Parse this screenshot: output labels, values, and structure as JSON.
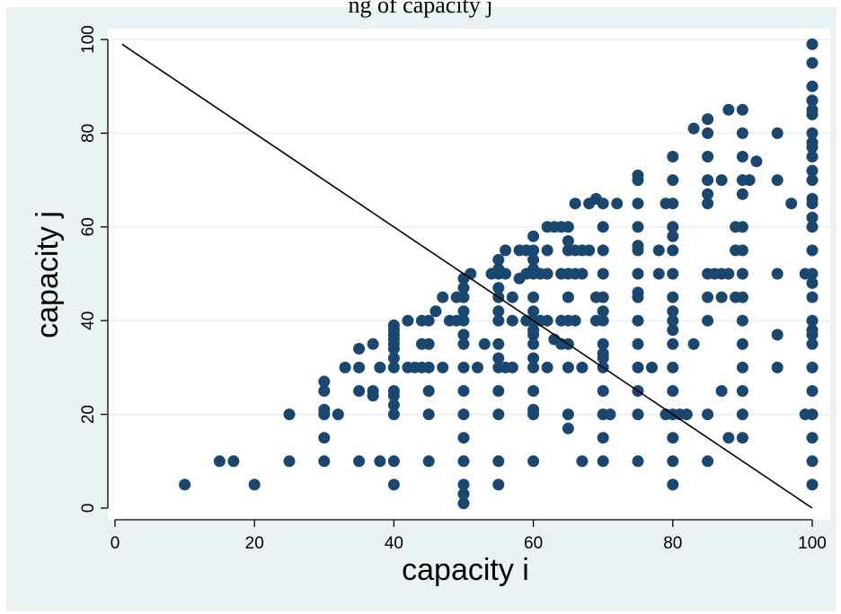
{
  "chart_data": {
    "type": "scatter",
    "title": "ng of capacity j",
    "xlabel": "capacity i",
    "ylabel": "capacity j",
    "xlim": [
      0,
      100
    ],
    "ylim": [
      0,
      100
    ],
    "xticks": [
      0,
      20,
      40,
      60,
      80,
      100
    ],
    "yticks": [
      0,
      20,
      40,
      60,
      80,
      100
    ],
    "grid": "horizontal",
    "legend": "none",
    "colors": {
      "outer_background": "#eaf2f3",
      "plot_background": "#ffffff",
      "gridline": "#eaf2f3",
      "marker": "#1a476f",
      "reference_line": "#000000"
    },
    "reference_line": {
      "x": [
        1,
        100
      ],
      "y": [
        99,
        0
      ]
    },
    "points": [
      [
        10,
        5
      ],
      [
        15,
        10
      ],
      [
        17,
        10
      ],
      [
        20,
        5
      ],
      [
        25,
        10
      ],
      [
        25,
        20
      ],
      [
        30,
        10
      ],
      [
        30,
        15
      ],
      [
        30,
        20
      ],
      [
        30,
        21
      ],
      [
        30,
        25
      ],
      [
        30,
        27
      ],
      [
        32,
        20
      ],
      [
        33,
        30
      ],
      [
        35,
        10
      ],
      [
        35,
        25
      ],
      [
        35,
        30
      ],
      [
        35,
        34
      ],
      [
        37,
        24
      ],
      [
        37,
        25
      ],
      [
        37,
        35
      ],
      [
        38,
        10
      ],
      [
        38,
        30
      ],
      [
        40,
        5
      ],
      [
        40,
        10
      ],
      [
        40,
        20
      ],
      [
        40,
        22
      ],
      [
        40,
        24
      ],
      [
        40,
        25
      ],
      [
        40,
        30
      ],
      [
        40,
        32
      ],
      [
        40,
        34
      ],
      [
        40,
        35
      ],
      [
        40,
        36
      ],
      [
        40,
        37
      ],
      [
        40,
        38
      ],
      [
        40,
        39
      ],
      [
        42,
        30
      ],
      [
        42,
        40
      ],
      [
        43,
        30
      ],
      [
        44,
        30
      ],
      [
        44,
        35
      ],
      [
        44,
        40
      ],
      [
        45,
        10
      ],
      [
        45,
        20
      ],
      [
        45,
        25
      ],
      [
        45,
        30
      ],
      [
        45,
        35
      ],
      [
        45,
        40
      ],
      [
        46,
        42
      ],
      [
        47,
        30
      ],
      [
        47,
        45
      ],
      [
        48,
        40
      ],
      [
        49,
        40
      ],
      [
        49,
        45
      ],
      [
        50,
        1
      ],
      [
        50,
        3
      ],
      [
        50,
        5
      ],
      [
        50,
        10
      ],
      [
        50,
        15
      ],
      [
        50,
        20
      ],
      [
        50,
        25
      ],
      [
        50,
        30
      ],
      [
        50,
        35
      ],
      [
        50,
        37
      ],
      [
        50,
        40
      ],
      [
        50,
        42
      ],
      [
        50,
        45
      ],
      [
        50,
        47
      ],
      [
        50,
        49
      ],
      [
        51,
        50
      ],
      [
        52,
        30
      ],
      [
        53,
        35
      ],
      [
        54,
        50
      ],
      [
        55,
        5
      ],
      [
        55,
        10
      ],
      [
        55,
        20
      ],
      [
        55,
        25
      ],
      [
        55,
        30
      ],
      [
        55,
        32
      ],
      [
        55,
        35
      ],
      [
        55,
        40
      ],
      [
        55,
        42
      ],
      [
        55,
        45
      ],
      [
        55,
        47
      ],
      [
        55,
        50
      ],
      [
        55,
        51
      ],
      [
        55,
        53
      ],
      [
        56,
        30
      ],
      [
        56,
        50
      ],
      [
        56,
        55
      ],
      [
        57,
        30
      ],
      [
        57,
        40
      ],
      [
        57,
        45
      ],
      [
        58,
        49
      ],
      [
        58,
        55
      ],
      [
        59,
        40
      ],
      [
        59,
        50
      ],
      [
        59,
        55
      ],
      [
        60,
        10
      ],
      [
        60,
        20
      ],
      [
        60,
        21
      ],
      [
        60,
        25
      ],
      [
        60,
        30
      ],
      [
        60,
        32
      ],
      [
        60,
        35
      ],
      [
        60,
        37
      ],
      [
        60,
        38
      ],
      [
        60,
        40
      ],
      [
        60,
        42
      ],
      [
        60,
        45
      ],
      [
        60,
        50
      ],
      [
        60,
        51
      ],
      [
        60,
        53
      ],
      [
        60,
        55
      ],
      [
        60,
        58
      ],
      [
        61,
        40
      ],
      [
        61,
        50
      ],
      [
        62,
        30
      ],
      [
        62,
        40
      ],
      [
        62,
        50
      ],
      [
        62,
        55
      ],
      [
        62,
        60
      ],
      [
        63,
        36
      ],
      [
        63,
        60
      ],
      [
        64,
        35
      ],
      [
        64,
        40
      ],
      [
        64,
        50
      ],
      [
        64,
        60
      ],
      [
        65,
        17
      ],
      [
        65,
        20
      ],
      [
        65,
        30
      ],
      [
        65,
        35
      ],
      [
        65,
        40
      ],
      [
        65,
        45
      ],
      [
        65,
        50
      ],
      [
        65,
        55
      ],
      [
        65,
        57
      ],
      [
        65,
        60
      ],
      [
        66,
        40
      ],
      [
        66,
        50
      ],
      [
        66,
        55
      ],
      [
        66,
        65
      ],
      [
        67,
        10
      ],
      [
        67,
        30
      ],
      [
        67,
        50
      ],
      [
        67,
        55
      ],
      [
        68,
        55
      ],
      [
        68,
        65
      ],
      [
        69,
        40
      ],
      [
        69,
        45
      ],
      [
        69,
        66
      ],
      [
        70,
        10
      ],
      [
        70,
        15
      ],
      [
        70,
        20
      ],
      [
        70,
        25
      ],
      [
        70,
        30
      ],
      [
        70,
        32
      ],
      [
        70,
        33
      ],
      [
        70,
        35
      ],
      [
        70,
        40
      ],
      [
        70,
        42
      ],
      [
        70,
        45
      ],
      [
        70,
        50
      ],
      [
        70,
        55
      ],
      [
        70,
        60
      ],
      [
        70,
        65
      ],
      [
        71,
        20
      ],
      [
        72,
        65
      ],
      [
        75,
        10
      ],
      [
        75,
        20
      ],
      [
        75,
        25
      ],
      [
        75,
        30
      ],
      [
        75,
        35
      ],
      [
        75,
        40
      ],
      [
        75,
        45
      ],
      [
        75,
        46
      ],
      [
        75,
        50
      ],
      [
        75,
        55
      ],
      [
        75,
        56
      ],
      [
        75,
        60
      ],
      [
        75,
        65
      ],
      [
        75,
        70
      ],
      [
        75,
        71
      ],
      [
        77,
        30
      ],
      [
        78,
        50
      ],
      [
        78,
        55
      ],
      [
        79,
        20
      ],
      [
        79,
        65
      ],
      [
        80,
        5
      ],
      [
        80,
        10
      ],
      [
        80,
        15
      ],
      [
        80,
        20
      ],
      [
        80,
        25
      ],
      [
        80,
        30
      ],
      [
        80,
        35
      ],
      [
        80,
        38
      ],
      [
        80,
        40
      ],
      [
        80,
        42
      ],
      [
        80,
        45
      ],
      [
        80,
        50
      ],
      [
        80,
        55
      ],
      [
        80,
        58
      ],
      [
        80,
        60
      ],
      [
        80,
        65
      ],
      [
        80,
        70
      ],
      [
        80,
        75
      ],
      [
        81,
        20
      ],
      [
        82,
        20
      ],
      [
        83,
        35
      ],
      [
        83,
        81
      ],
      [
        85,
        10
      ],
      [
        85,
        20
      ],
      [
        85,
        40
      ],
      [
        85,
        45
      ],
      [
        85,
        50
      ],
      [
        85,
        65
      ],
      [
        85,
        67
      ],
      [
        85,
        70
      ],
      [
        85,
        75
      ],
      [
        85,
        80
      ],
      [
        85,
        83
      ],
      [
        86,
        50
      ],
      [
        87,
        25
      ],
      [
        87,
        45
      ],
      [
        87,
        50
      ],
      [
        87,
        70
      ],
      [
        88,
        15
      ],
      [
        88,
        50
      ],
      [
        88,
        85
      ],
      [
        89,
        45
      ],
      [
        89,
        55
      ],
      [
        89,
        60
      ],
      [
        90,
        15
      ],
      [
        90,
        20
      ],
      [
        90,
        25
      ],
      [
        90,
        30
      ],
      [
        90,
        35
      ],
      [
        90,
        40
      ],
      [
        90,
        45
      ],
      [
        90,
        50
      ],
      [
        90,
        55
      ],
      [
        90,
        60
      ],
      [
        90,
        67
      ],
      [
        90,
        70
      ],
      [
        90,
        75
      ],
      [
        90,
        80
      ],
      [
        90,
        85
      ],
      [
        91,
        70
      ],
      [
        92,
        74
      ],
      [
        95,
        30
      ],
      [
        95,
        37
      ],
      [
        95,
        50
      ],
      [
        95,
        70
      ],
      [
        95,
        80
      ],
      [
        97,
        65
      ],
      [
        99,
        20
      ],
      [
        99,
        50
      ],
      [
        100,
        5
      ],
      [
        100,
        10
      ],
      [
        100,
        15
      ],
      [
        100,
        20
      ],
      [
        100,
        25
      ],
      [
        100,
        30
      ],
      [
        100,
        35
      ],
      [
        100,
        37
      ],
      [
        100,
        38
      ],
      [
        100,
        40
      ],
      [
        100,
        45
      ],
      [
        100,
        48
      ],
      [
        100,
        50
      ],
      [
        100,
        55
      ],
      [
        100,
        60
      ],
      [
        100,
        62
      ],
      [
        100,
        65
      ],
      [
        100,
        66
      ],
      [
        100,
        70
      ],
      [
        100,
        72
      ],
      [
        100,
        75
      ],
      [
        100,
        77
      ],
      [
        100,
        78
      ],
      [
        100,
        80
      ],
      [
        100,
        84
      ],
      [
        100,
        85
      ],
      [
        100,
        87
      ],
      [
        100,
        90
      ],
      [
        100,
        95
      ],
      [
        100,
        99
      ]
    ]
  }
}
